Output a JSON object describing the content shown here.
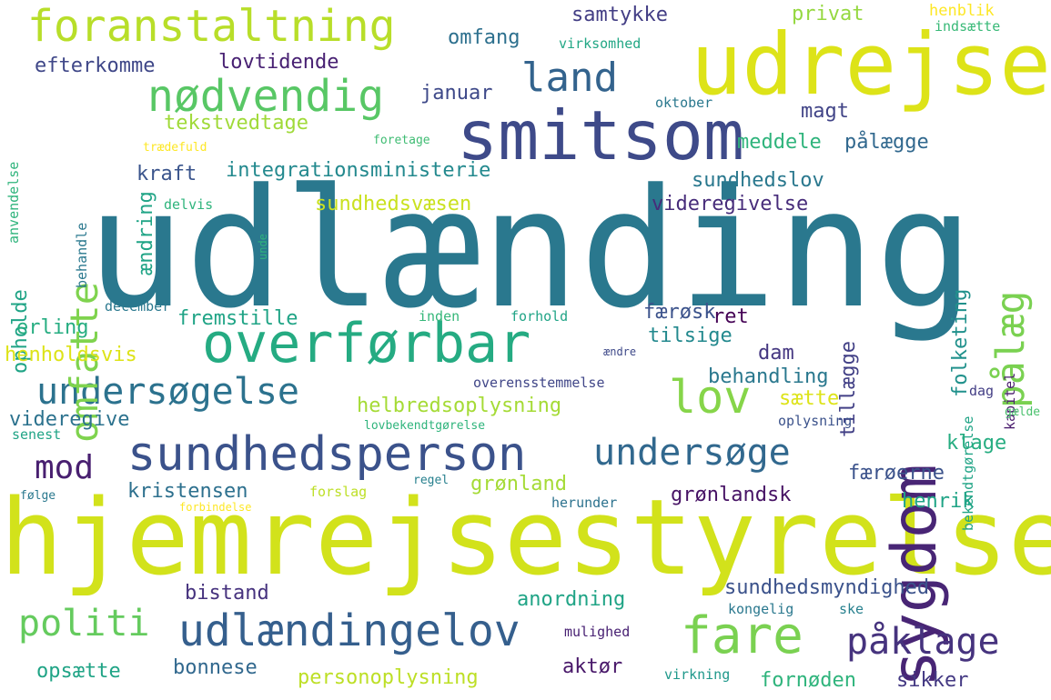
{
  "words": [
    {
      "id": "udlaending",
      "text": "udlænding",
      "color": "#2a788e"
    },
    {
      "id": "hjemrejsestyrelse",
      "text": "hjemrejsestyrelse",
      "color": "#d2e21b"
    },
    {
      "id": "udrejse",
      "text": "udrejse",
      "color": "#dde318"
    },
    {
      "id": "smitsom",
      "text": "smitsom",
      "color": "#3e4a89"
    },
    {
      "id": "sygdom",
      "text": "sygdom",
      "color": "#482575"
    },
    {
      "id": "overfoerbar",
      "text": "overførbar",
      "color": "#25ab82"
    },
    {
      "id": "sundhedsperson",
      "text": "sundhedsperson",
      "color": "#3b528b"
    },
    {
      "id": "foranstaltning",
      "text": "foranstaltning",
      "color": "#b8de29"
    },
    {
      "id": "noedvendig",
      "text": "nødvendig",
      "color": "#58c765"
    },
    {
      "id": "udlaendingelov",
      "text": "udlændingelov",
      "color": "#355f8d"
    },
    {
      "id": "fare",
      "text": "fare",
      "color": "#7ad151"
    },
    {
      "id": "lov",
      "text": "lov",
      "color": "#86d549"
    },
    {
      "id": "undersoege",
      "text": "undersøge",
      "color": "#31688e"
    },
    {
      "id": "undersoegelse",
      "text": "undersøgelse",
      "color": "#2c728e"
    },
    {
      "id": "paalaeg",
      "text": "pålæg",
      "color": "#7ad151"
    },
    {
      "id": "omfatte",
      "text": "omfatte",
      "color": "#7fd34e"
    },
    {
      "id": "land",
      "text": "land",
      "color": "#33638d"
    },
    {
      "id": "paaklage",
      "text": "påklage",
      "color": "#46337e"
    },
    {
      "id": "politi",
      "text": "politi",
      "color": "#65cb5e"
    },
    {
      "id": "mod",
      "text": "mod",
      "color": "#481f70"
    },
    {
      "id": "efterkomme",
      "text": "efterkomme",
      "color": "#3f4788"
    },
    {
      "id": "lovtidende",
      "text": "lovtidende",
      "color": "#482173"
    },
    {
      "id": "omfang",
      "text": "omfang",
      "color": "#2d708e"
    },
    {
      "id": "samtykke",
      "text": "samtykke",
      "color": "#433e85"
    },
    {
      "id": "privat",
      "text": "privat",
      "color": "#95d840"
    },
    {
      "id": "henblik",
      "text": "henblik",
      "color": "#fde725"
    },
    {
      "id": "indsaette",
      "text": "indsætte",
      "color": "#38b977"
    },
    {
      "id": "virksomhed",
      "text": "virksomhed",
      "color": "#22a785"
    },
    {
      "id": "januar",
      "text": "januar",
      "color": "#3e4989"
    },
    {
      "id": "tekstvedtage",
      "text": "tekstvedtage",
      "color": "#a0da39"
    },
    {
      "id": "oktober",
      "text": "oktober",
      "color": "#2a788e"
    },
    {
      "id": "magt",
      "text": "magt",
      "color": "#414487"
    },
    {
      "id": "meddele",
      "text": "meddele",
      "color": "#2fb47c"
    },
    {
      "id": "paalaegge",
      "text": "pålægge",
      "color": "#31688e"
    },
    {
      "id": "foretage",
      "text": "foretage",
      "color": "#3fbc73"
    },
    {
      "id": "traedefuld",
      "text": "trædefuld",
      "color": "#fde725"
    },
    {
      "id": "kraft",
      "text": "kraft",
      "color": "#3a548c"
    },
    {
      "id": "integrationsministerie",
      "text": "integrationsministerie",
      "color": "#23898e"
    },
    {
      "id": "sundhedslov",
      "text": "sundhedslov",
      "color": "#2a788e"
    },
    {
      "id": "videregivelse",
      "text": "videregivelse",
      "color": "#472c7a"
    },
    {
      "id": "sundhedsvaesen",
      "text": "sundhedsvæsen",
      "color": "#cae11f"
    },
    {
      "id": "delvis",
      "text": "delvis",
      "color": "#2fb47c"
    },
    {
      "id": "aendring",
      "text": "ændring",
      "color": "#20a486"
    },
    {
      "id": "behandle",
      "text": "behandle",
      "color": "#2a788e"
    },
    {
      "id": "anvendelse",
      "text": "anvendelse",
      "color": "#2fb47c"
    },
    {
      "id": "unde",
      "text": "unde",
      "color": "#2fb47c"
    },
    {
      "id": "opholde",
      "text": "opholde",
      "color": "#20a486"
    },
    {
      "id": "folketing",
      "text": "folketing",
      "color": "#21918c"
    },
    {
      "id": "tillaegge",
      "text": "tillægge",
      "color": "#424086"
    },
    {
      "id": "bekendtgoerelse",
      "text": "bekendtgørelse",
      "color": "#20a486"
    },
    {
      "id": "kapitel",
      "text": "kapitel",
      "color": "#481a6c"
    },
    {
      "id": "december",
      "text": "december",
      "color": "#2a788e"
    },
    {
      "id": "erling",
      "text": "erling",
      "color": "#26ad81"
    },
    {
      "id": "fremstille",
      "text": "fremstille",
      "color": "#20a486"
    },
    {
      "id": "inden",
      "text": "inden",
      "color": "#35b779"
    },
    {
      "id": "forhold",
      "text": "forhold",
      "color": "#20a486"
    },
    {
      "id": "faeroesk",
      "text": "færøsk",
      "color": "#3b528b"
    },
    {
      "id": "ret",
      "text": "ret",
      "color": "#440154"
    },
    {
      "id": "tilsige",
      "text": "tilsige",
      "color": "#23898e"
    },
    {
      "id": "henholdsvis",
      "text": "henholdsvis",
      "color": "#dde318"
    },
    {
      "id": "dam",
      "text": "dam",
      "color": "#453781"
    },
    {
      "id": "aendre",
      "text": "ændre",
      "color": "#3e4989"
    },
    {
      "id": "behandling",
      "text": "behandling",
      "color": "#2a788e"
    },
    {
      "id": "overensstemmelse",
      "text": "overensstemmelse",
      "color": "#404688"
    },
    {
      "id": "helbredsoplysning",
      "text": "helbredsoplysning",
      "color": "#a5db36"
    },
    {
      "id": "saette",
      "text": "sætte",
      "color": "#dde318"
    },
    {
      "id": "dag",
      "text": "dag",
      "color": "#433e85"
    },
    {
      "id": "gaelde",
      "text": "gælde",
      "color": "#4ac16d"
    },
    {
      "id": "videregive",
      "text": "videregive",
      "color": "#2c728e"
    },
    {
      "id": "oplysning",
      "text": "oplysning",
      "color": "#3b528b"
    },
    {
      "id": "lovbekendtgoerelse",
      "text": "lovbekendtgørelse",
      "color": "#2fb47c"
    },
    {
      "id": "senest",
      "text": "senest",
      "color": "#20a486"
    },
    {
      "id": "klage",
      "text": "klage",
      "color": "#26ad81"
    },
    {
      "id": "faeroeerne",
      "text": "færøerne",
      "color": "#3b528b"
    },
    {
      "id": "kristensen",
      "text": "kristensen",
      "color": "#2d708e"
    },
    {
      "id": "groenland",
      "text": "grønland",
      "color": "#a5db36"
    },
    {
      "id": "groenlandsk",
      "text": "grønlandsk",
      "color": "#471365"
    },
    {
      "id": "regel",
      "text": "regel",
      "color": "#27808e"
    },
    {
      "id": "foelge",
      "text": "følge",
      "color": "#2a788e"
    },
    {
      "id": "forslag",
      "text": "forslag",
      "color": "#bddf26"
    },
    {
      "id": "forbindelse",
      "text": "forbindelse",
      "color": "#fde725"
    },
    {
      "id": "herunder",
      "text": "herunder",
      "color": "#2c728e"
    },
    {
      "id": "henrik",
      "text": "henrik",
      "color": "#20a486"
    },
    {
      "id": "bistand",
      "text": "bistand",
      "color": "#46327e"
    },
    {
      "id": "sundhedsmyndighed",
      "text": "sundhedsmyndighed",
      "color": "#3b528b"
    },
    {
      "id": "anordning",
      "text": "anordning",
      "color": "#20a486"
    },
    {
      "id": "kongelig",
      "text": "kongelig",
      "color": "#2a788e"
    },
    {
      "id": "ske",
      "text": "ske",
      "color": "#27808e"
    },
    {
      "id": "mulighed",
      "text": "mulighed",
      "color": "#482173"
    },
    {
      "id": "opsaette",
      "text": "opsætte",
      "color": "#20a486"
    },
    {
      "id": "bonnese",
      "text": "bonnese",
      "color": "#31688e"
    },
    {
      "id": "personoplysning",
      "text": "personoplysning",
      "color": "#bddf26"
    },
    {
      "id": "aktoer",
      "text": "aktør",
      "color": "#481769"
    },
    {
      "id": "virkning",
      "text": "virkning",
      "color": "#1f988b"
    },
    {
      "id": "fornoeden",
      "text": "fornøden",
      "color": "#2fb47c"
    },
    {
      "id": "sikker",
      "text": "sikker",
      "color": "#443983"
    }
  ]
}
